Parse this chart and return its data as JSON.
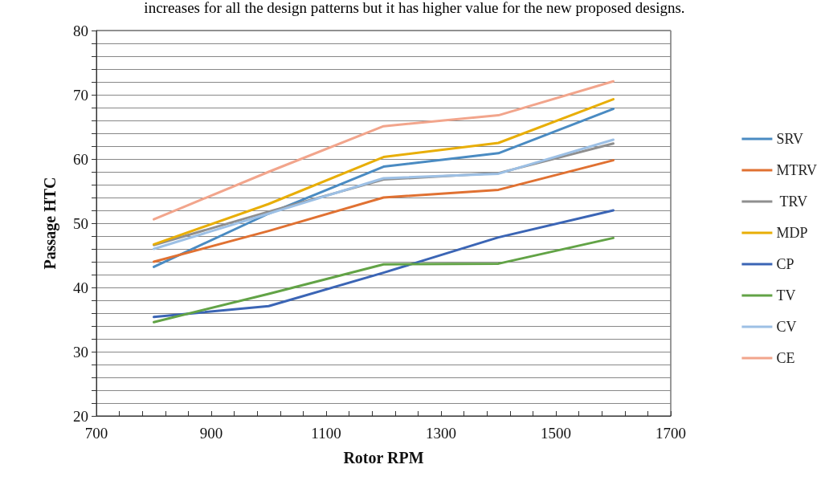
{
  "chart_data": {
    "type": "line",
    "xlabel": "Rotor RPM",
    "ylabel": "Passage HTC",
    "annotations": [
      "increases for all the design patterns but it has higher value for the new proposed designs."
    ],
    "x": [
      800,
      1000,
      1200,
      1400,
      1600
    ],
    "series": [
      {
        "name": "SRV",
        "color": "#4a8bc2",
        "values": [
          43.2,
          51.5,
          58.8,
          60.9,
          67.8
        ]
      },
      {
        "name": "MTRV",
        "color": "#e07132",
        "values": [
          44,
          48.8,
          54,
          55.2,
          59.8
        ]
      },
      {
        "name": " TRV",
        "color": "#8f8f8f",
        "values": [
          46.6,
          51.8,
          56.8,
          57.8,
          62.4
        ]
      },
      {
        "name": "MDP",
        "color": "#e8ae07",
        "values": [
          46.7,
          53,
          60.3,
          62.5,
          69.3
        ]
      },
      {
        "name": "CP",
        "color": "#3b65b5",
        "values": [
          35.4,
          37.1,
          42.3,
          47.8,
          52
        ]
      },
      {
        "name": "TV",
        "color": "#62a346",
        "values": [
          34.6,
          39,
          43.6,
          43.7,
          47.7
        ]
      },
      {
        "name": "CV",
        "color": "#9dc0e5",
        "values": [
          46,
          51.5,
          57,
          57.7,
          63
        ]
      },
      {
        "name": "CE",
        "color": "#f2a58c",
        "values": [
          50.6,
          58,
          65.1,
          66.8,
          72.1
        ]
      }
    ],
    "xlim": [
      700,
      1700
    ],
    "xticks": [
      700,
      {
        "value": 740,
        "label": null
      },
      {
        "value": 780,
        "label": null
      },
      {
        "value": 820,
        "label": null
      },
      {
        "value": 860,
        "label": null
      },
      900,
      {
        "value": 940,
        "label": null
      },
      {
        "value": 980,
        "label": null
      },
      {
        "value": 1020,
        "label": null
      },
      {
        "value": 1060,
        "label": null
      },
      1100,
      {
        "value": 1140,
        "label": null
      },
      {
        "value": 1180,
        "label": null
      },
      {
        "value": 1220,
        "label": null
      },
      {
        "value": 1260,
        "label": null
      },
      1300,
      {
        "value": 1340,
        "label": null
      },
      {
        "value": 1380,
        "label": null
      },
      {
        "value": 1420,
        "label": null
      },
      {
        "value": 1460,
        "label": null
      },
      1500,
      {
        "value": 1540,
        "label": null
      },
      {
        "value": 1580,
        "label": null
      },
      {
        "value": 1620,
        "label": null
      },
      {
        "value": 1660,
        "label": null
      },
      1700
    ],
    "ylim": [
      20,
      80
    ],
    "yticks": [
      20,
      {
        "value": 22,
        "label": null
      },
      {
        "value": 24,
        "label": null
      },
      {
        "value": 26,
        "label": null
      },
      {
        "value": 28,
        "label": null
      },
      30,
      {
        "value": 32,
        "label": null
      },
      {
        "value": 34,
        "label": null
      },
      {
        "value": 36,
        "label": null
      },
      {
        "value": 38,
        "label": null
      },
      40,
      {
        "value": 42,
        "label": null
      },
      {
        "value": 44,
        "label": null
      },
      {
        "value": 46,
        "label": null
      },
      {
        "value": 48,
        "label": null
      },
      50,
      {
        "value": 52,
        "label": null
      },
      {
        "value": 54,
        "label": null
      },
      {
        "value": 56,
        "label": null
      },
      {
        "value": 58,
        "label": null
      },
      60,
      {
        "value": 62,
        "label": null
      },
      {
        "value": 64,
        "label": null
      },
      {
        "value": 66,
        "label": null
      },
      {
        "value": 68,
        "label": null
      },
      70,
      {
        "value": 72,
        "label": null
      },
      {
        "value": 74,
        "label": null
      },
      {
        "value": 76,
        "label": null
      },
      {
        "value": 78,
        "label": null
      },
      80
    ],
    "grid": "y",
    "legend": "right",
    "marker": "none",
    "line_style": "solid"
  }
}
